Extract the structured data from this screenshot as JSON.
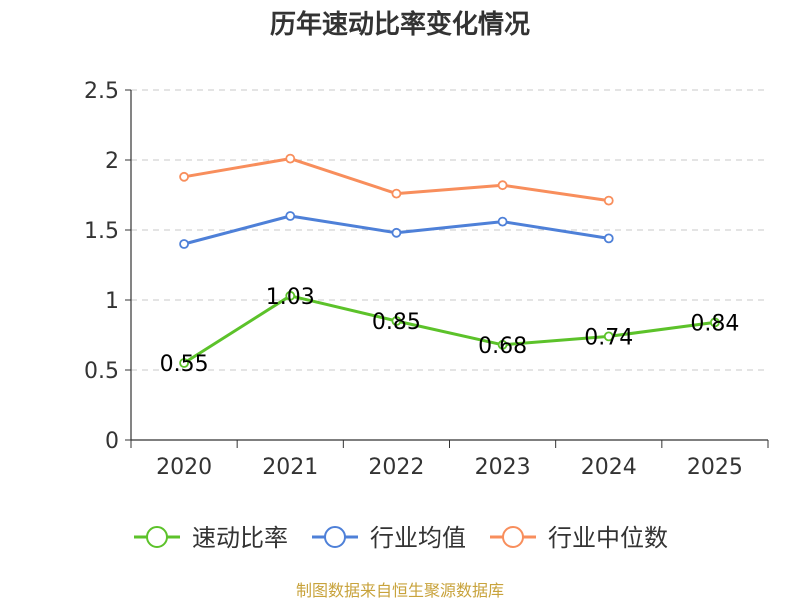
{
  "chart_data": {
    "type": "line",
    "title": "历年速动比率变化情况",
    "categories": [
      "2020",
      "2021",
      "2022",
      "2023",
      "2024",
      "2025"
    ],
    "yticks": [
      "0",
      "0.5",
      "1",
      "1.5",
      "2",
      "2.5"
    ],
    "ylim": [
      0,
      2.5
    ],
    "grid": true,
    "legend_position": "bottom",
    "series": [
      {
        "name": "速动比率",
        "color": "#5cc22a",
        "values": [
          0.55,
          1.03,
          0.85,
          0.68,
          0.74,
          0.84
        ],
        "labels": [
          "0.55",
          "1.03",
          "0.85",
          "0.68",
          "0.74",
          "0.84"
        ]
      },
      {
        "name": "行业均值",
        "color": "#4e80d8",
        "values": [
          1.4,
          1.6,
          1.48,
          1.56,
          1.44,
          null
        ]
      },
      {
        "name": "行业中位数",
        "color": "#f88e5c",
        "values": [
          1.88,
          2.01,
          1.76,
          1.82,
          1.71,
          null
        ]
      }
    ],
    "source": "制图数据来自恒生聚源数据库"
  }
}
